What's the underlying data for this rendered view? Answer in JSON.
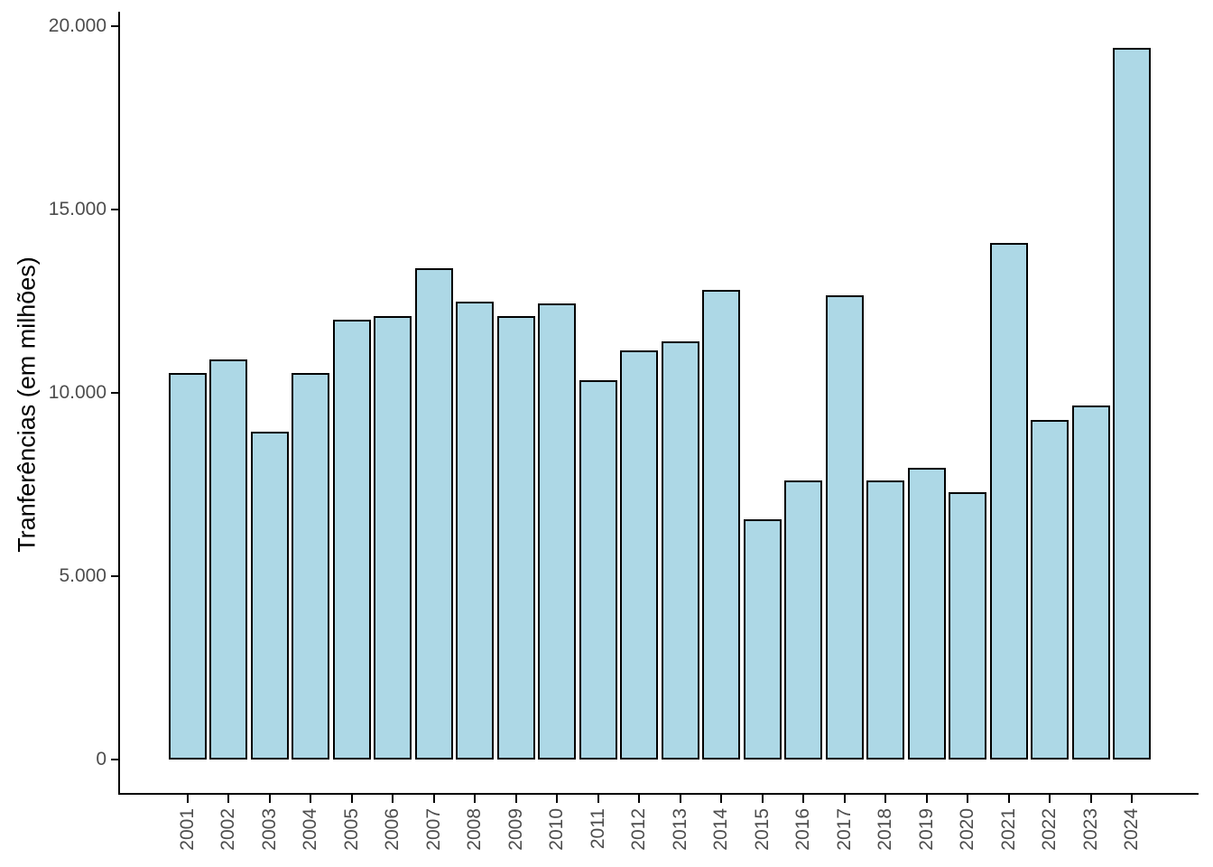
{
  "figure": {
    "background": "#ffffff"
  },
  "chart_data": {
    "type": "bar",
    "title": "",
    "xlabel": "",
    "ylabel": "Tranferências (em milhões)",
    "categories": [
      "2001",
      "2002",
      "2003",
      "2004",
      "2005",
      "2006",
      "2007",
      "2008",
      "2009",
      "2010",
      "2011",
      "2012",
      "2013",
      "2014",
      "2015",
      "2016",
      "2017",
      "2018",
      "2019",
      "2020",
      "2021",
      "2022",
      "2023",
      "2024"
    ],
    "values": [
      10550,
      10900,
      8950,
      10550,
      12000,
      12100,
      13400,
      12500,
      12100,
      12450,
      10350,
      11150,
      11400,
      12800,
      6550,
      7600,
      12650,
      7600,
      7950,
      7300,
      14100,
      9250,
      9650,
      19400
    ],
    "ylim": [
      0,
      20000
    ],
    "yticks": [
      {
        "value": 0,
        "label": "0"
      },
      {
        "value": 5000,
        "label": "5.000"
      },
      {
        "value": 10000,
        "label": "10.000"
      },
      {
        "value": 15000,
        "label": "15.000"
      },
      {
        "value": 20000,
        "label": "20.000"
      }
    ],
    "grid": false,
    "legend": "none",
    "colors": {
      "bar_fill": "#ADD8E6",
      "bar_border": "#000000",
      "axis_line": "#000000",
      "tick_label": "#4d4d4d",
      "axis_title": "#000000"
    }
  }
}
